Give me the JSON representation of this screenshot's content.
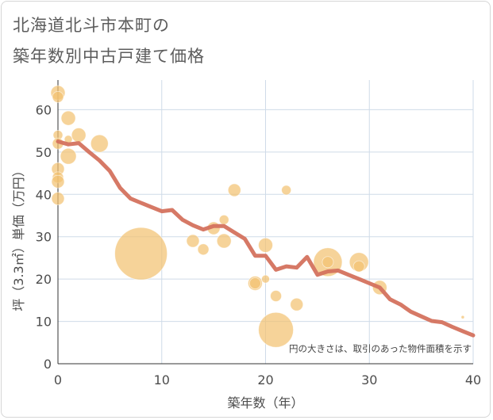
{
  "title": {
    "line1": "北海道北斗市本町の",
    "line2": "築年数別中古戸建て価格"
  },
  "colors": {
    "bubble": "#f3c272",
    "line": "#d4725e",
    "grid": "#cfdbe8",
    "text": "#4d4d4d"
  },
  "chart_data": {
    "type": "scatter",
    "title": "北海道北斗市本町の築年数別中古戸建て価格",
    "xlabel": "築年数（年）",
    "ylabel": "坪（3.3㎡）単価（万円）",
    "xlim": [
      0,
      40
    ],
    "ylim": [
      0,
      67
    ],
    "xticks": [
      "0",
      "10",
      "20",
      "30",
      "40"
    ],
    "yticks": [
      "0",
      "10",
      "20",
      "30",
      "40",
      "50",
      "60"
    ],
    "grid": true,
    "note": "円の大きさは、取引のあった物件面積を示す",
    "bubbles": [
      {
        "x": 0,
        "y": 64,
        "size": 9
      },
      {
        "x": 0,
        "y": 63,
        "size": 7
      },
      {
        "x": 0,
        "y": 54,
        "size": 6
      },
      {
        "x": 0,
        "y": 52,
        "size": 7
      },
      {
        "x": 0,
        "y": 46,
        "size": 8
      },
      {
        "x": 0,
        "y": 44,
        "size": 7
      },
      {
        "x": 0,
        "y": 43,
        "size": 8
      },
      {
        "x": 0,
        "y": 39,
        "size": 8
      },
      {
        "x": 1,
        "y": 58,
        "size": 9
      },
      {
        "x": 1,
        "y": 53,
        "size": 5
      },
      {
        "x": 1,
        "y": 49,
        "size": 10
      },
      {
        "x": 2,
        "y": 54,
        "size": 9
      },
      {
        "x": 4,
        "y": 52,
        "size": 11
      },
      {
        "x": 8,
        "y": 26,
        "size": 33
      },
      {
        "x": 13,
        "y": 29,
        "size": 8
      },
      {
        "x": 14,
        "y": 27,
        "size": 7
      },
      {
        "x": 15,
        "y": 32,
        "size": 8
      },
      {
        "x": 16,
        "y": 34,
        "size": 6
      },
      {
        "x": 16,
        "y": 29,
        "size": 9
      },
      {
        "x": 17,
        "y": 41,
        "size": 8
      },
      {
        "x": 19,
        "y": 19,
        "size": 9
      },
      {
        "x": 19,
        "y": 19,
        "size": 7
      },
      {
        "x": 20,
        "y": 28,
        "size": 9
      },
      {
        "x": 20,
        "y": 20,
        "size": 5
      },
      {
        "x": 21,
        "y": 16,
        "size": 7
      },
      {
        "x": 21,
        "y": 8,
        "size": 22
      },
      {
        "x": 22,
        "y": 41,
        "size": 6
      },
      {
        "x": 23,
        "y": 14,
        "size": 8
      },
      {
        "x": 26,
        "y": 24,
        "size": 18
      },
      {
        "x": 26,
        "y": 24,
        "size": 7
      },
      {
        "x": 29,
        "y": 24,
        "size": 12
      },
      {
        "x": 29,
        "y": 23,
        "size": 7
      },
      {
        "x": 31,
        "y": 18,
        "size": 9
      },
      {
        "x": 39,
        "y": 11,
        "size": 2
      }
    ],
    "trend": {
      "x": [
        0,
        1,
        2,
        3,
        4,
        5,
        6,
        7,
        8,
        9,
        10,
        11,
        12,
        13,
        14,
        15,
        16,
        17,
        18,
        19,
        20,
        21,
        22,
        23,
        24,
        25,
        26,
        27,
        28,
        29,
        30,
        31,
        32,
        33,
        34,
        35,
        36,
        37,
        38,
        39,
        40
      ],
      "y": [
        52.5,
        51.8,
        52.1,
        50,
        48,
        45.5,
        41.5,
        39,
        38,
        37,
        36,
        36.3,
        34,
        32.7,
        31.7,
        32.5,
        32.5,
        31,
        29.5,
        25.5,
        25.5,
        22.2,
        23,
        22.7,
        25.2,
        21,
        21.8,
        22,
        21,
        20,
        19,
        18,
        15.2,
        14,
        12.3,
        11.2,
        10.1,
        9.8,
        8.7,
        7.7,
        6.7
      ]
    }
  }
}
